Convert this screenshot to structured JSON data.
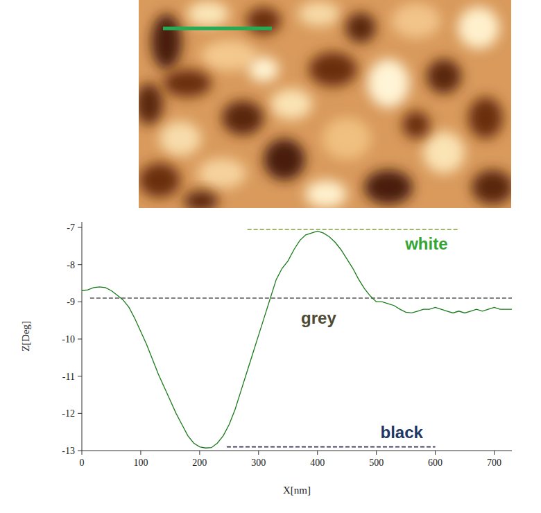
{
  "chart_data": {
    "type": "line",
    "x_label": "X[nm]",
    "y_label": "Z[Deg]",
    "color": "#1a7a1a",
    "x": [
      0,
      10,
      20,
      30,
      40,
      50,
      60,
      70,
      80,
      90,
      100,
      110,
      120,
      130,
      140,
      150,
      160,
      170,
      180,
      190,
      200,
      210,
      220,
      230,
      240,
      250,
      260,
      270,
      280,
      290,
      300,
      310,
      320,
      330,
      340,
      350,
      360,
      370,
      380,
      390,
      400,
      410,
      420,
      430,
      440,
      450,
      460,
      470,
      480,
      490,
      500,
      510,
      520,
      530,
      540,
      550,
      560,
      570,
      580,
      590,
      600,
      610,
      620,
      630,
      640,
      650,
      660,
      670,
      680,
      690,
      700,
      710,
      720,
      730
    ],
    "values": [
      -8.7,
      -8.68,
      -8.62,
      -8.6,
      -8.62,
      -8.7,
      -8.82,
      -8.95,
      -9.15,
      -9.45,
      -9.8,
      -10.15,
      -10.55,
      -10.95,
      -11.3,
      -11.65,
      -12.0,
      -12.3,
      -12.6,
      -12.8,
      -12.9,
      -12.93,
      -12.92,
      -12.8,
      -12.6,
      -12.3,
      -11.9,
      -11.4,
      -10.9,
      -10.4,
      -9.9,
      -9.4,
      -8.9,
      -8.4,
      -8.1,
      -7.9,
      -7.6,
      -7.35,
      -7.2,
      -7.15,
      -7.1,
      -7.15,
      -7.25,
      -7.4,
      -7.6,
      -7.85,
      -8.1,
      -8.4,
      -8.65,
      -8.85,
      -9.0,
      -9.0,
      -9.05,
      -9.1,
      -9.2,
      -9.28,
      -9.3,
      -9.25,
      -9.2,
      -9.2,
      -9.15,
      -9.2,
      -9.25,
      -9.3,
      -9.25,
      -9.3,
      -9.25,
      -9.2,
      -9.25,
      -9.2,
      -9.15,
      -9.2,
      -9.2,
      -9.2
    ],
    "xlim": [
      0,
      730
    ],
    "xticks": [
      0,
      100,
      200,
      300,
      400,
      500,
      600,
      700
    ],
    "ylim": [
      -13,
      -6.85
    ],
    "yticks": [
      -13,
      -12,
      -11,
      -10,
      -9,
      -8,
      -7
    ],
    "grid": false,
    "annotations": [
      {
        "text": "white",
        "x": 585,
        "y": -7.42,
        "color": "#33a533",
        "line_x": [
          281,
          640
        ],
        "line_y": -7.05,
        "line_color": "#7a9a3a"
      },
      {
        "text": "grey",
        "x": 402,
        "y": -9.42,
        "color": "#4d4a33",
        "line_x": [
          14,
          730
        ],
        "line_y": -8.9,
        "line_color": "#555555"
      },
      {
        "text": "black",
        "x": 543,
        "y": -12.5,
        "color": "#1f3864",
        "line_x": [
          246,
          600
        ],
        "line_y": -12.9,
        "line_color": "#333355"
      }
    ]
  }
}
